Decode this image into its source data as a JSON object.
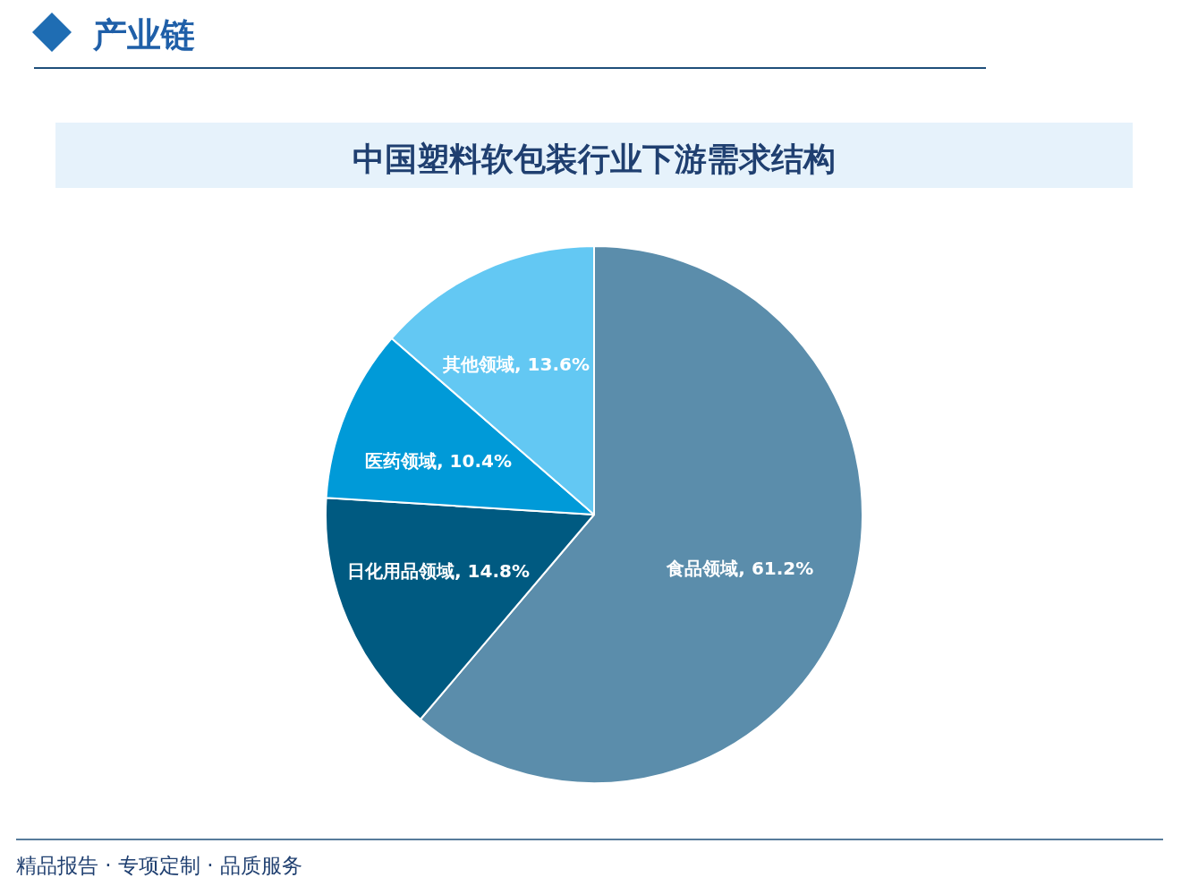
{
  "chart_data": {
    "type": "pie",
    "title": "中国塑料软包装行业下游需求结构",
    "categories": [
      "食品领域",
      "日化用品领域",
      "医药领域",
      "其他领域"
    ],
    "values": [
      61.2,
      14.8,
      10.4,
      13.6
    ],
    "colors": [
      "#5b8dab",
      "#005a81",
      "#009ad8",
      "#63c8f3"
    ],
    "value_labels": [
      ", 61.2%",
      ", 14.8%",
      ", 10.4%",
      ", 13.6%"
    ],
    "annotations": [
      "产业链",
      "精品报告 · 专项定制 · 品质服务"
    ]
  }
}
